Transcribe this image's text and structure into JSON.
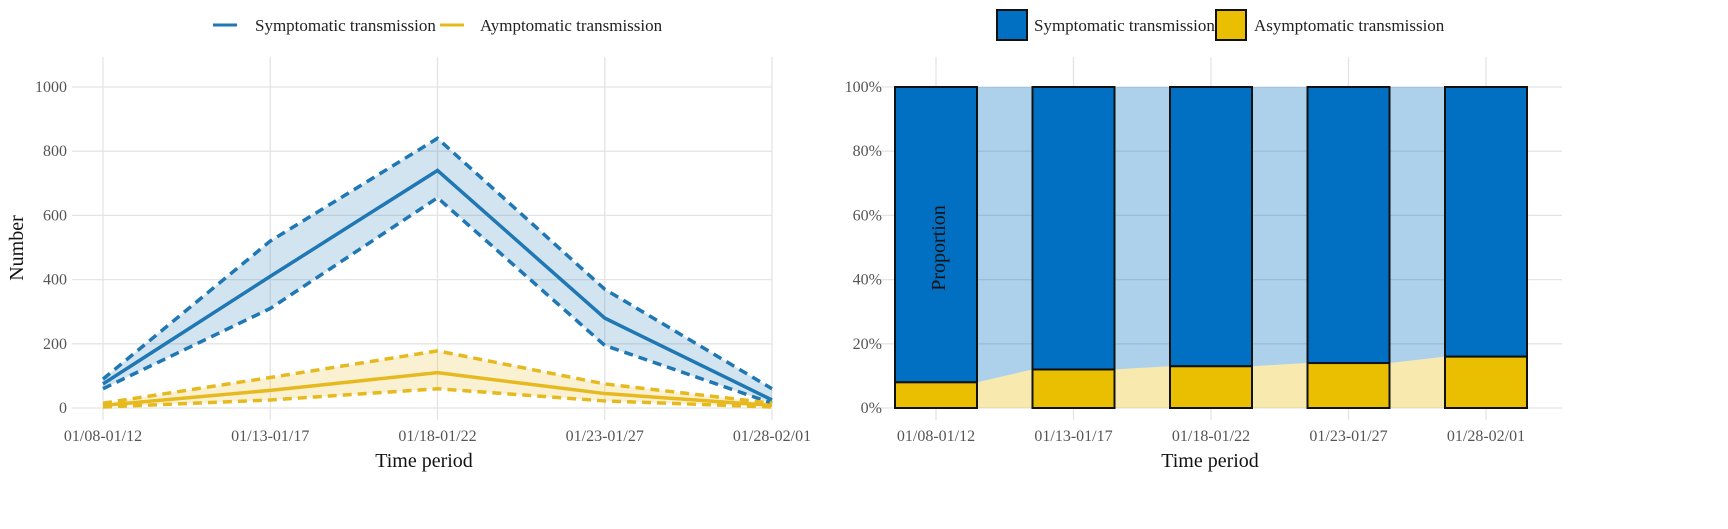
{
  "chart_data": [
    {
      "type": "line",
      "categories": [
        "01/08-01/12",
        "01/13-01/17",
        "01/18-01/22",
        "01/23-01/27",
        "01/28-02/01"
      ],
      "xlabel": "Time period",
      "ylabel": "Number",
      "ylim": [
        0,
        1000
      ],
      "yticks": [
        "0",
        "200",
        "400",
        "600",
        "800",
        "1000"
      ],
      "grid": true,
      "legend_position": "top",
      "series": [
        {
          "name": "Symptomatic transmission",
          "color": "#1f77b4",
          "values": [
            75,
            410,
            740,
            280,
            25
          ],
          "lower": [
            60,
            310,
            655,
            195,
            15
          ],
          "upper": [
            90,
            520,
            840,
            370,
            60
          ]
        },
        {
          "name": "Aymptomatic transmission",
          "color": "#e6b91e",
          "values": [
            8,
            55,
            110,
            45,
            8
          ],
          "lower": [
            3,
            25,
            60,
            22,
            3
          ],
          "upper": [
            15,
            95,
            178,
            75,
            15
          ]
        }
      ]
    },
    {
      "type": "bar",
      "stacked": true,
      "categories": [
        "01/08-01/12",
        "01/13-01/17",
        "01/18-01/22",
        "01/23-01/27",
        "01/28-02/01"
      ],
      "xlabel": "Time period",
      "ylabel": "Proportion",
      "ylim": [
        0,
        1
      ],
      "yticks": [
        "0%",
        "20%",
        "40%",
        "60%",
        "80%",
        "100%"
      ],
      "grid": true,
      "legend_position": "top",
      "series": [
        {
          "name": "Asymptomatic transmission",
          "color": "#eabf02",
          "values": [
            0.08,
            0.12,
            0.13,
            0.14,
            0.16
          ]
        },
        {
          "name": "Symptomatic transmission",
          "color": "#0270c2",
          "values": [
            0.92,
            0.88,
            0.87,
            0.86,
            0.84
          ]
        }
      ]
    }
  ]
}
